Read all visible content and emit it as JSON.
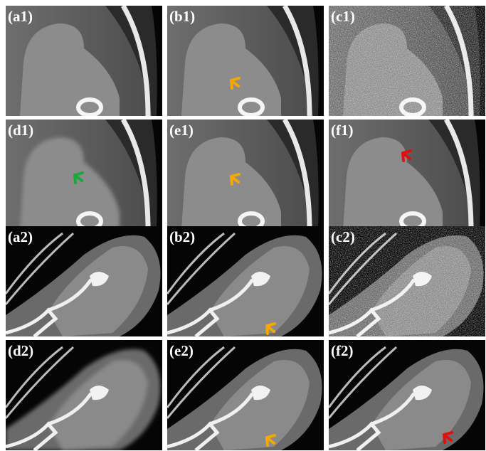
{
  "panels": [
    {
      "label": "(a1)"
    },
    {
      "label": "(b1)"
    },
    {
      "label": "(c1)"
    },
    {
      "label": "(d1)"
    },
    {
      "label": "(e1)"
    },
    {
      "label": "(f1)"
    },
    {
      "label": "(a2)"
    },
    {
      "label": "(b2)"
    },
    {
      "label": "(c2)"
    },
    {
      "label": "(d2)"
    },
    {
      "label": "(e2)"
    },
    {
      "label": "(f2)"
    }
  ]
}
